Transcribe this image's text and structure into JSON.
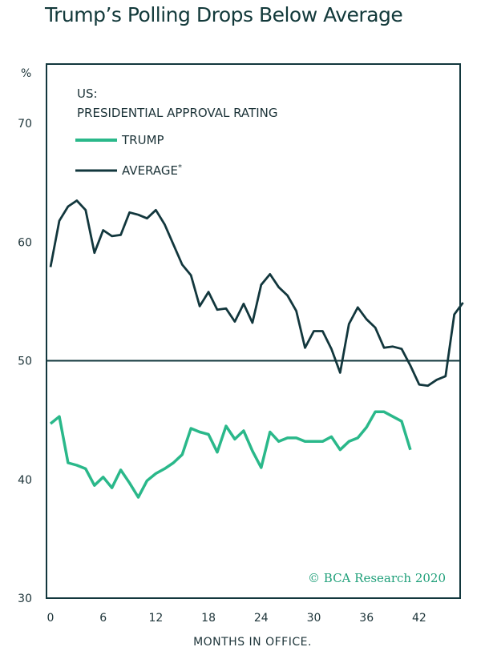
{
  "title": "Trump’s Polling Drops Below Average",
  "chart_data": {
    "type": "line",
    "title": "Trump’s Polling Drops Below Average",
    "subtitle": [
      "US:",
      "PRESIDENTIAL APPROVAL RATING"
    ],
    "xlabel": "MONTHS IN OFFICE.",
    "ylabel": "%",
    "xlim": [
      -0.5,
      47
    ],
    "ylim": [
      30,
      75
    ],
    "x_ticks": [
      0,
      6,
      12,
      18,
      24,
      30,
      36,
      42
    ],
    "y_ticks": [
      30,
      40,
      50,
      60,
      70
    ],
    "reference_line": 50,
    "series": [
      {
        "name": "TRUMP",
        "legend_label": "TRUMP",
        "color": "#2ab88a",
        "x": [
          0,
          1,
          2,
          3,
          4,
          5,
          6,
          7,
          8,
          9,
          10,
          11,
          12,
          13,
          14,
          15,
          16,
          17,
          18,
          19,
          20,
          21,
          22,
          23,
          24,
          25,
          26,
          27,
          28,
          29,
          30,
          31,
          32,
          33,
          34,
          35,
          36,
          37,
          38,
          39,
          40,
          41
        ],
        "values": [
          44.7,
          45.3,
          41.4,
          41.2,
          40.9,
          39.5,
          40.2,
          39.3,
          40.8,
          39.7,
          38.5,
          39.9,
          40.5,
          40.9,
          41.4,
          42.1,
          44.3,
          44.0,
          43.8,
          42.3,
          44.5,
          43.4,
          44.1,
          42.4,
          41.0,
          44.0,
          43.2,
          43.5,
          43.5,
          43.2,
          43.2,
          43.2,
          43.6,
          42.5,
          43.2,
          43.5,
          44.4,
          45.7,
          45.7,
          45.3,
          44.9,
          42.5
        ]
      },
      {
        "name": "AVERAGE",
        "legend_label": "AVERAGE",
        "legend_superscript": "*",
        "color": "#12373d",
        "x": [
          0,
          1,
          2,
          3,
          4,
          5,
          6,
          7,
          8,
          9,
          10,
          11,
          12,
          13,
          14,
          15,
          16,
          17,
          18,
          19,
          20,
          21,
          22,
          23,
          24,
          25,
          26,
          27,
          28,
          29,
          30,
          31,
          32,
          33,
          34,
          35,
          36,
          37,
          38,
          39,
          40,
          41,
          42,
          43,
          44,
          45,
          46,
          47
        ],
        "values": [
          57.9,
          61.8,
          63.0,
          63.5,
          62.7,
          59.1,
          61.0,
          60.5,
          60.6,
          62.5,
          62.3,
          62.0,
          62.7,
          61.5,
          59.8,
          58.1,
          57.2,
          54.6,
          55.8,
          54.3,
          54.4,
          53.3,
          54.8,
          53.2,
          56.4,
          57.3,
          56.2,
          55.5,
          54.2,
          51.1,
          52.5,
          52.5,
          51.0,
          49.0,
          53.1,
          54.5,
          53.5,
          52.8,
          51.1,
          51.2,
          51.0,
          49.6,
          48.0,
          47.9,
          48.4,
          48.7,
          53.9,
          54.9
        ]
      }
    ],
    "annotation": "© BCA Research 2020"
  }
}
